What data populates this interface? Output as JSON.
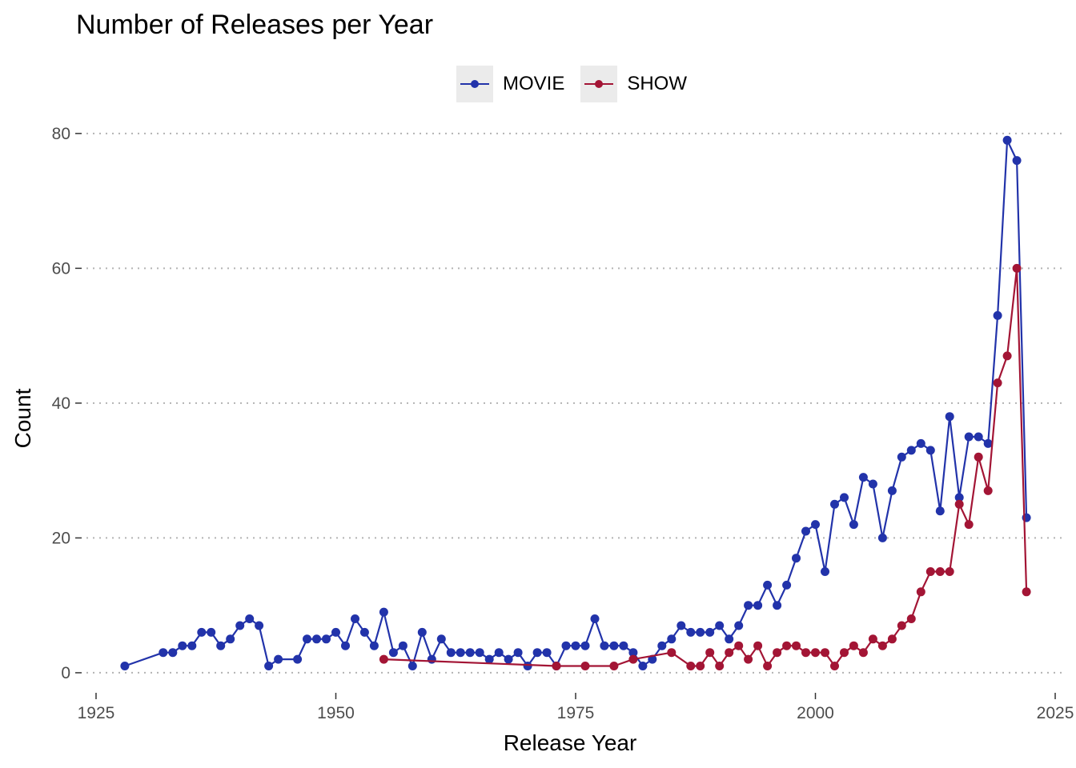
{
  "chart_data": {
    "type": "line",
    "title": "Number of Releases per Year",
    "xlabel": "Release Year",
    "ylabel": "Count",
    "xlim": [
      1924,
      2026
    ],
    "ylim": [
      -2.5,
      82
    ],
    "x_ticks": [
      1925,
      1950,
      1975,
      2000,
      2025
    ],
    "y_ticks": [
      0,
      20,
      40,
      60,
      80
    ],
    "grid": "horizontal dotted major",
    "legend": "top",
    "series": [
      {
        "name": "MOVIE",
        "color": "#2233aa",
        "points": [
          [
            1928,
            1
          ],
          [
            1932,
            3
          ],
          [
            1933,
            3
          ],
          [
            1934,
            4
          ],
          [
            1935,
            4
          ],
          [
            1936,
            6
          ],
          [
            1937,
            6
          ],
          [
            1938,
            4
          ],
          [
            1939,
            5
          ],
          [
            1940,
            7
          ],
          [
            1941,
            8
          ],
          [
            1942,
            7
          ],
          [
            1943,
            1
          ],
          [
            1944,
            2
          ],
          [
            1946,
            2
          ],
          [
            1947,
            5
          ],
          [
            1948,
            5
          ],
          [
            1949,
            5
          ],
          [
            1950,
            6
          ],
          [
            1951,
            4
          ],
          [
            1952,
            8
          ],
          [
            1953,
            6
          ],
          [
            1954,
            4
          ],
          [
            1955,
            9
          ],
          [
            1956,
            3
          ],
          [
            1957,
            4
          ],
          [
            1958,
            1
          ],
          [
            1959,
            6
          ],
          [
            1960,
            2
          ],
          [
            1961,
            5
          ],
          [
            1962,
            3
          ],
          [
            1963,
            3
          ],
          [
            1964,
            3
          ],
          [
            1965,
            3
          ],
          [
            1966,
            2
          ],
          [
            1967,
            3
          ],
          [
            1968,
            2
          ],
          [
            1969,
            3
          ],
          [
            1970,
            1
          ],
          [
            1971,
            3
          ],
          [
            1972,
            3
          ],
          [
            1973,
            1
          ],
          [
            1974,
            4
          ],
          [
            1975,
            4
          ],
          [
            1976,
            4
          ],
          [
            1977,
            8
          ],
          [
            1978,
            4
          ],
          [
            1979,
            4
          ],
          [
            1980,
            4
          ],
          [
            1981,
            3
          ],
          [
            1982,
            1
          ],
          [
            1983,
            2
          ],
          [
            1984,
            4
          ],
          [
            1985,
            5
          ],
          [
            1986,
            7
          ],
          [
            1987,
            6
          ],
          [
            1988,
            6
          ],
          [
            1989,
            6
          ],
          [
            1990,
            7
          ],
          [
            1991,
            5
          ],
          [
            1992,
            7
          ],
          [
            1993,
            10
          ],
          [
            1994,
            10
          ],
          [
            1995,
            13
          ],
          [
            1996,
            10
          ],
          [
            1997,
            13
          ],
          [
            1998,
            17
          ],
          [
            1999,
            21
          ],
          [
            2000,
            22
          ],
          [
            2001,
            15
          ],
          [
            2002,
            25
          ],
          [
            2003,
            26
          ],
          [
            2004,
            22
          ],
          [
            2005,
            29
          ],
          [
            2006,
            28
          ],
          [
            2007,
            20
          ],
          [
            2008,
            27
          ],
          [
            2009,
            32
          ],
          [
            2010,
            33
          ],
          [
            2011,
            34
          ],
          [
            2012,
            33
          ],
          [
            2013,
            24
          ],
          [
            2014,
            38
          ],
          [
            2015,
            26
          ],
          [
            2016,
            35
          ],
          [
            2017,
            35
          ],
          [
            2018,
            34
          ],
          [
            2019,
            53
          ],
          [
            2020,
            79
          ],
          [
            2021,
            76
          ],
          [
            2022,
            23
          ]
        ]
      },
      {
        "name": "SHOW",
        "color": "#a31535",
        "points": [
          [
            1955,
            2
          ],
          [
            1973,
            1
          ],
          [
            1976,
            1
          ],
          [
            1979,
            1
          ],
          [
            1981,
            2
          ],
          [
            1985,
            3
          ],
          [
            1987,
            1
          ],
          [
            1988,
            1
          ],
          [
            1989,
            3
          ],
          [
            1990,
            1
          ],
          [
            1991,
            3
          ],
          [
            1992,
            4
          ],
          [
            1993,
            2
          ],
          [
            1994,
            4
          ],
          [
            1995,
            1
          ],
          [
            1996,
            3
          ],
          [
            1997,
            4
          ],
          [
            1998,
            4
          ],
          [
            1999,
            3
          ],
          [
            2000,
            3
          ],
          [
            2001,
            3
          ],
          [
            2002,
            1
          ],
          [
            2003,
            3
          ],
          [
            2004,
            4
          ],
          [
            2005,
            3
          ],
          [
            2006,
            5
          ],
          [
            2007,
            4
          ],
          [
            2008,
            5
          ],
          [
            2009,
            7
          ],
          [
            2010,
            8
          ],
          [
            2011,
            12
          ],
          [
            2012,
            15
          ],
          [
            2013,
            15
          ],
          [
            2014,
            15
          ],
          [
            2015,
            25
          ],
          [
            2016,
            22
          ],
          [
            2017,
            32
          ],
          [
            2018,
            27
          ],
          [
            2019,
            43
          ],
          [
            2020,
            47
          ],
          [
            2021,
            60
          ],
          [
            2022,
            12
          ]
        ]
      }
    ]
  }
}
